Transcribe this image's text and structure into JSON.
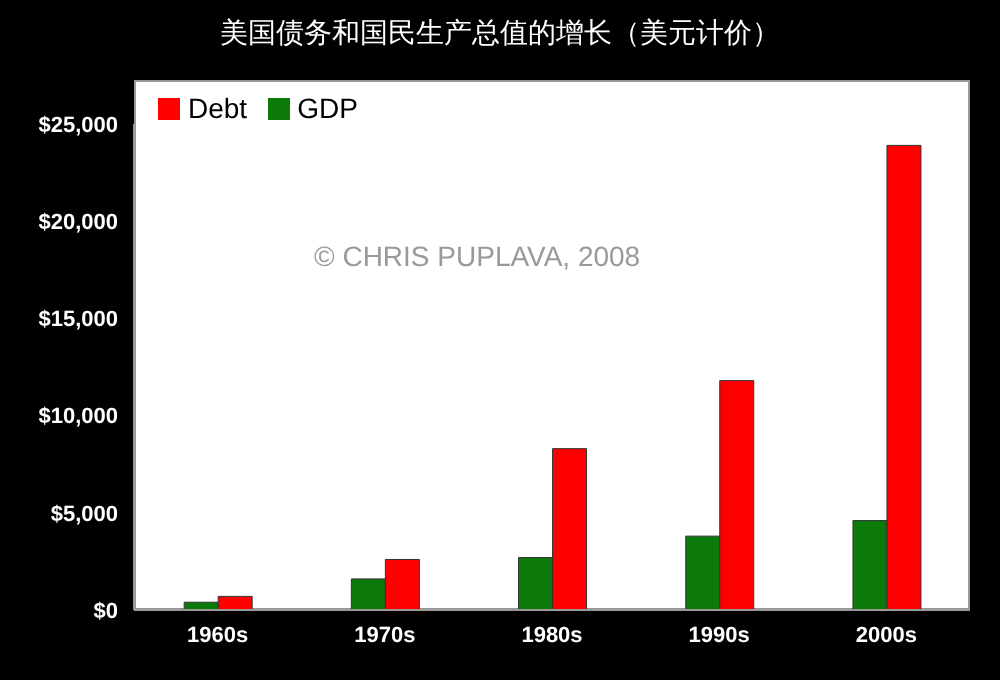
{
  "chart_data": {
    "type": "bar",
    "title": "美国债务和国民生产总值的增长（美元计价）",
    "categories": [
      "1960s",
      "1970s",
      "1980s",
      "1990s",
      "2000s"
    ],
    "series": [
      {
        "name": "GDP",
        "color": "#0b7a0b",
        "values": [
          400,
          1600,
          2700,
          3800,
          4600
        ]
      },
      {
        "name": "Debt",
        "color": "#ff0000",
        "values": [
          700,
          2600,
          8300,
          11800,
          23900
        ]
      }
    ],
    "ylim": [
      0,
      25000
    ],
    "yticks": [
      {
        "value": 0,
        "label": "$0"
      },
      {
        "value": 5000,
        "label": "$5,000"
      },
      {
        "value": 10000,
        "label": "$10,000"
      },
      {
        "value": 15000,
        "label": "$15,000"
      },
      {
        "value": 20000,
        "label": "$20,000"
      },
      {
        "value": 25000,
        "label": "$25,000"
      }
    ],
    "legend": "top left",
    "grid": false,
    "annotations": [
      "© CHRIS PUPLAVA, 2008"
    ]
  }
}
